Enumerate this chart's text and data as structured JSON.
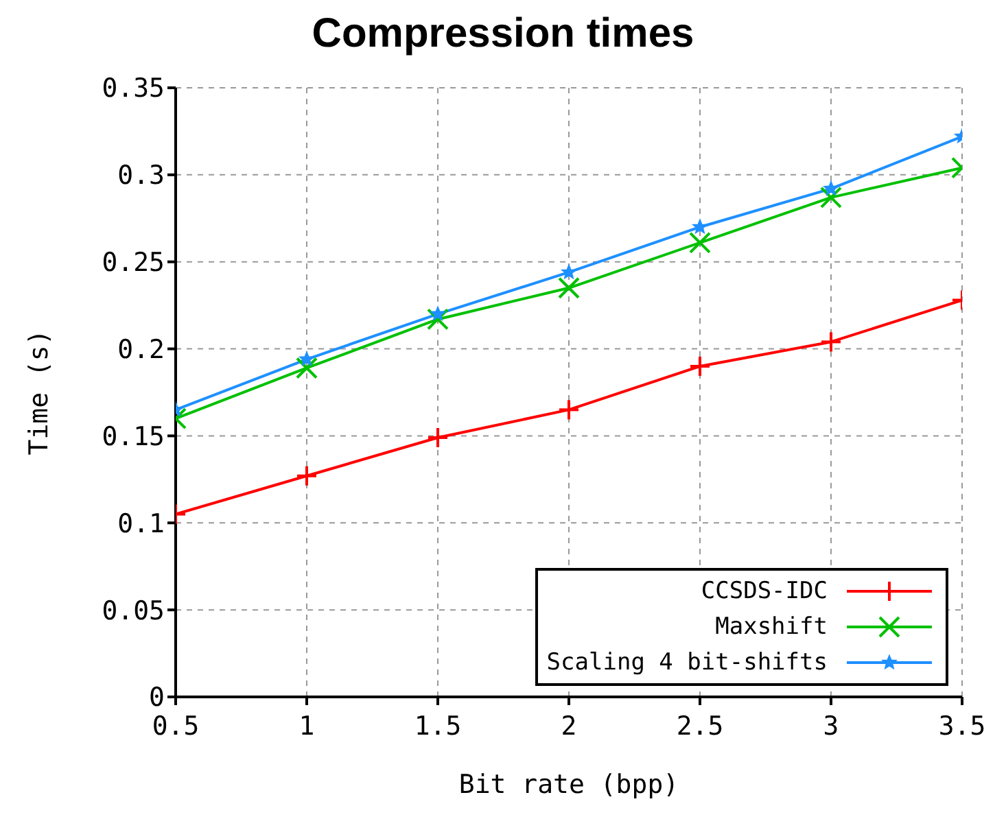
{
  "chart_data": {
    "type": "line",
    "title": "Compression times",
    "xlabel": "Bit rate (bpp)",
    "ylabel": "Time (s)",
    "x": [
      0.5,
      1,
      1.5,
      2,
      2.5,
      3,
      3.5
    ],
    "series": [
      {
        "name": "CCSDS-IDC",
        "color": "#ff0000",
        "marker": "cross",
        "values": [
          0.105,
          0.127,
          0.149,
          0.165,
          0.19,
          0.204,
          0.228
        ]
      },
      {
        "name": "Maxshift",
        "color": "#00c000",
        "marker": "cross",
        "values": [
          0.16,
          0.189,
          0.217,
          0.235,
          0.261,
          0.287,
          0.304
        ]
      },
      {
        "name": "Scaling 4 bit-shifts",
        "color": "#1e90ff",
        "marker": "star",
        "values": [
          0.165,
          0.194,
          0.22,
          0.244,
          0.27,
          0.292,
          0.322
        ]
      }
    ],
    "xlim": [
      0.5,
      3.5
    ],
    "xticks": [
      0.5,
      1,
      1.5,
      2,
      2.5,
      3,
      3.5
    ],
    "ylim": [
      0,
      0.35
    ],
    "yticks": [
      0,
      0.05,
      0.1,
      0.15,
      0.2,
      0.25,
      0.3,
      0.35
    ],
    "grid": true,
    "legend": "bottom right",
    "line_style": "solid"
  }
}
